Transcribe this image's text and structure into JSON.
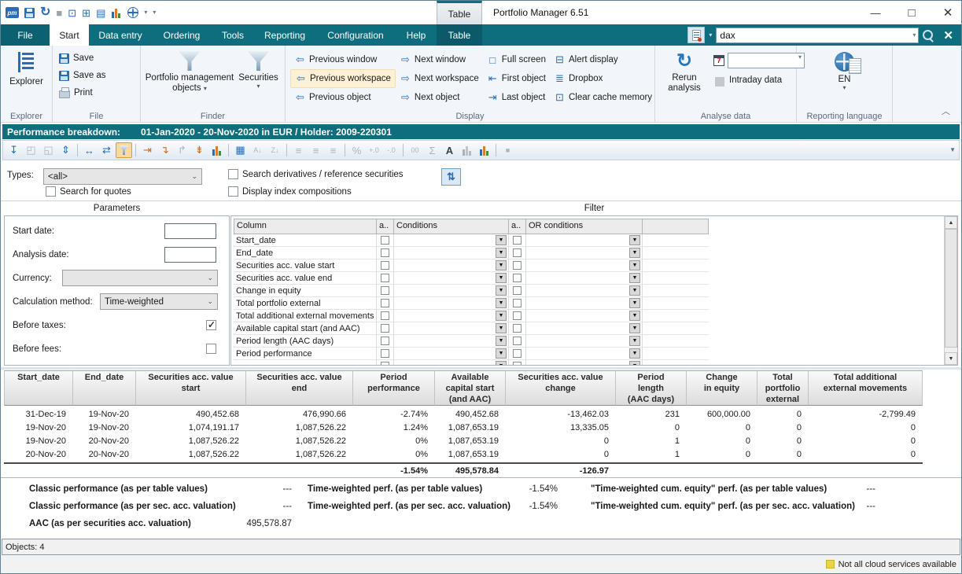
{
  "titlebar": {
    "document_tab": "Table",
    "app_title": "Portfolio Manager 6.51",
    "qat_icons": [
      "pm-logo",
      "save-icon",
      "refresh-icon",
      "stop-icon",
      "run-object-icon",
      "run-workspace-icon",
      "report-icon",
      "statistics-icon",
      "web-icon",
      "dropdown-arrow",
      "qat-overflow-arrow"
    ]
  },
  "menubar": {
    "tabs": [
      {
        "label": "File",
        "style": "file"
      },
      {
        "label": "Start",
        "style": "active"
      },
      {
        "label": "Data entry"
      },
      {
        "label": "Ordering"
      },
      {
        "label": "Tools"
      },
      {
        "label": "Reporting"
      },
      {
        "label": "Configuration"
      },
      {
        "label": "Help"
      },
      {
        "label": "Table",
        "style": "context"
      }
    ],
    "search": {
      "value": "dax"
    }
  },
  "ribbon": {
    "explorer": {
      "button": "Explorer",
      "group_label": "Explorer"
    },
    "file": {
      "items": [
        "Save",
        "Save as",
        "Print"
      ],
      "group_label": "File"
    },
    "finder": {
      "items": [
        "Portfolio management objects",
        "Securities"
      ],
      "group_label": "Finder"
    },
    "display": {
      "group_label": "Display",
      "columns": [
        [
          {
            "label": "Previous window",
            "icon": "arrow-left"
          },
          {
            "label": "Previous workspace",
            "icon": "arrow-left",
            "highlighted": true
          },
          {
            "label": "Previous object",
            "icon": "arrow-left"
          }
        ],
        [
          {
            "label": "Next window",
            "icon": "arrow-right"
          },
          {
            "label": "Next workspace",
            "icon": "arrow-right"
          },
          {
            "label": "Next object",
            "icon": "arrow-right"
          }
        ],
        [
          {
            "label": "Full screen",
            "icon": "window"
          },
          {
            "label": "First object",
            "icon": "arrow-first"
          },
          {
            "label": "Last object",
            "icon": "arrow-last"
          }
        ],
        [
          {
            "label": "Alert display",
            "icon": "alert-window"
          },
          {
            "label": "Dropbox",
            "icon": "list"
          },
          {
            "label": "Clear cache memory",
            "icon": "cache"
          }
        ]
      ]
    },
    "analyse": {
      "group_label": "Analyse data",
      "rerun": "Rerun analysis",
      "intraday": "Intraday data",
      "date_value": ""
    },
    "language": {
      "group_label": "Reporting language",
      "value": "EN"
    }
  },
  "view_header": {
    "title": "Performance breakdown:",
    "subtitle": "01-Jan-2020 - 20-Nov-2020 in EUR / Holder: 2009-220301"
  },
  "view_toolbar": {
    "icons": [
      {
        "name": "export-layout",
        "tone": "multi"
      },
      {
        "name": "zoom-window",
        "tone": "disabled"
      },
      {
        "name": "zoom-selection",
        "tone": "disabled"
      },
      {
        "name": "fit-height",
        "tone": "blue"
      },
      {
        "name": "separator"
      },
      {
        "name": "fit-width",
        "tone": "blue"
      },
      {
        "name": "refresh",
        "tone": "blue"
      },
      {
        "name": "filter",
        "tone": "selected"
      },
      {
        "name": "separator"
      },
      {
        "name": "insert-column",
        "tone": "orange"
      },
      {
        "name": "insert-row",
        "tone": "orange"
      },
      {
        "name": "merge",
        "tone": "disabled"
      },
      {
        "name": "goto-bottom",
        "tone": "orange"
      },
      {
        "name": "analysis-chart",
        "tone": "multi"
      },
      {
        "name": "separator"
      },
      {
        "name": "freeze-columns",
        "tone": "blue"
      },
      {
        "name": "sort-ascending",
        "tone": "disabled"
      },
      {
        "name": "sort-descending",
        "tone": "disabled"
      },
      {
        "name": "separator"
      },
      {
        "name": "align-left",
        "tone": "disabled"
      },
      {
        "name": "align-center",
        "tone": "disabled"
      },
      {
        "name": "align-right",
        "tone": "disabled"
      },
      {
        "name": "separator"
      },
      {
        "name": "percent-format",
        "tone": "disabled"
      },
      {
        "name": "increase-decimal",
        "tone": "disabled"
      },
      {
        "name": "decrease-decimal",
        "tone": "disabled"
      },
      {
        "name": "separator"
      },
      {
        "name": "number-format",
        "tone": "disabled"
      },
      {
        "name": "sum",
        "tone": "disabled"
      },
      {
        "name": "font",
        "tone": "dark"
      },
      {
        "name": "column-chart",
        "tone": "disabled"
      },
      {
        "name": "bar-chart",
        "tone": "multi"
      },
      {
        "name": "separator"
      },
      {
        "name": "stop",
        "tone": "disabled"
      }
    ]
  },
  "search_options": {
    "types_label": "Types:",
    "types_value": "<all>",
    "search_quotes": {
      "label": "Search for quotes",
      "checked": false
    },
    "search_derivatives": {
      "label": "Search derivatives / reference securities",
      "checked": false
    },
    "display_index": {
      "label": "Display index compositions",
      "checked": false
    }
  },
  "parameters": {
    "title": "Parameters",
    "start_date": {
      "label": "Start date:",
      "value": ""
    },
    "analysis_date": {
      "label": "Analysis date:",
      "value": ""
    },
    "currency": {
      "label": "Currency:",
      "value": ""
    },
    "calculation_method": {
      "label": "Calculation method:",
      "value": "Time-weighted"
    },
    "before_taxes": {
      "label": "Before taxes:",
      "checked": true
    },
    "before_fees": {
      "label": "Before fees:",
      "checked": false
    }
  },
  "filter": {
    "title": "Filter",
    "headers": [
      "Column",
      "a..",
      "Conditions",
      "a..",
      "OR conditions"
    ],
    "rows": [
      "Start_date",
      "End_date",
      "Securities acc. value start",
      "Securities acc. value end",
      "Change in equity",
      "Total portfolio external",
      "Total additional external movements",
      "Available capital start (and AAC)",
      "Period length (AAC days)",
      "Period performance",
      ""
    ]
  },
  "results": {
    "columns": [
      "Start_date",
      "End_date",
      "Securities acc. value\nstart",
      "Securities acc. value\nend",
      "Period\nperformance",
      "Available\ncapital start\n(and AAC)",
      "Securities acc. value\nchange",
      "Period\nlength\n(AAC days)",
      "Change\nin equity",
      "Total\nportfolio\nexternal",
      "Total additional\nexternal movements"
    ],
    "rows": [
      [
        "31-Dec-19",
        "19-Nov-20",
        "490,452.68",
        "476,990.66",
        "-2.74%",
        "490,452.68",
        "-13,462.03",
        "231",
        "600,000.00",
        "0",
        "-2,799.49"
      ],
      [
        "19-Nov-20",
        "19-Nov-20",
        "1,074,191.17",
        "1,087,526.22",
        "1.24%",
        "1,087,653.19",
        "13,335.05",
        "0",
        "0",
        "0",
        "0"
      ],
      [
        "19-Nov-20",
        "20-Nov-20",
        "1,087,526.22",
        "1,087,526.22",
        "0%",
        "1,087,653.19",
        "0",
        "1",
        "0",
        "0",
        "0"
      ],
      [
        "20-Nov-20",
        "20-Nov-20",
        "1,087,526.22",
        "1,087,526.22",
        "0%",
        "1,087,653.19",
        "0",
        "1",
        "0",
        "0",
        "0"
      ]
    ],
    "totals": [
      "",
      "",
      "",
      "",
      "-1.54%",
      "495,578.84",
      "-126.97",
      "",
      "",
      "",
      ""
    ]
  },
  "summary": {
    "items": [
      {
        "label": "Classic performance (as per table values)",
        "value": "---"
      },
      {
        "label": "Time-weighted perf. (as per table values)",
        "value": "-1.54%"
      },
      {
        "label": "\"Time-weighted cum. equity\" perf. (as per table values)",
        "value": "---"
      },
      {
        "label": "Classic performance (as per sec. acc. valuation)",
        "value": "---"
      },
      {
        "label": "Time-weighted perf. (as per sec. acc. valuation)",
        "value": "-1.54%"
      },
      {
        "label": "\"Time-weighted cum. equity\" perf. (as per sec. acc. valuation)",
        "value": "---"
      },
      {
        "label": "AAC (as per securities acc. valuation)",
        "value": "495,578.87"
      }
    ]
  },
  "statusbar": {
    "objects": "Objects: 4"
  },
  "footer": {
    "cloud_notice": "Not all cloud services available"
  }
}
